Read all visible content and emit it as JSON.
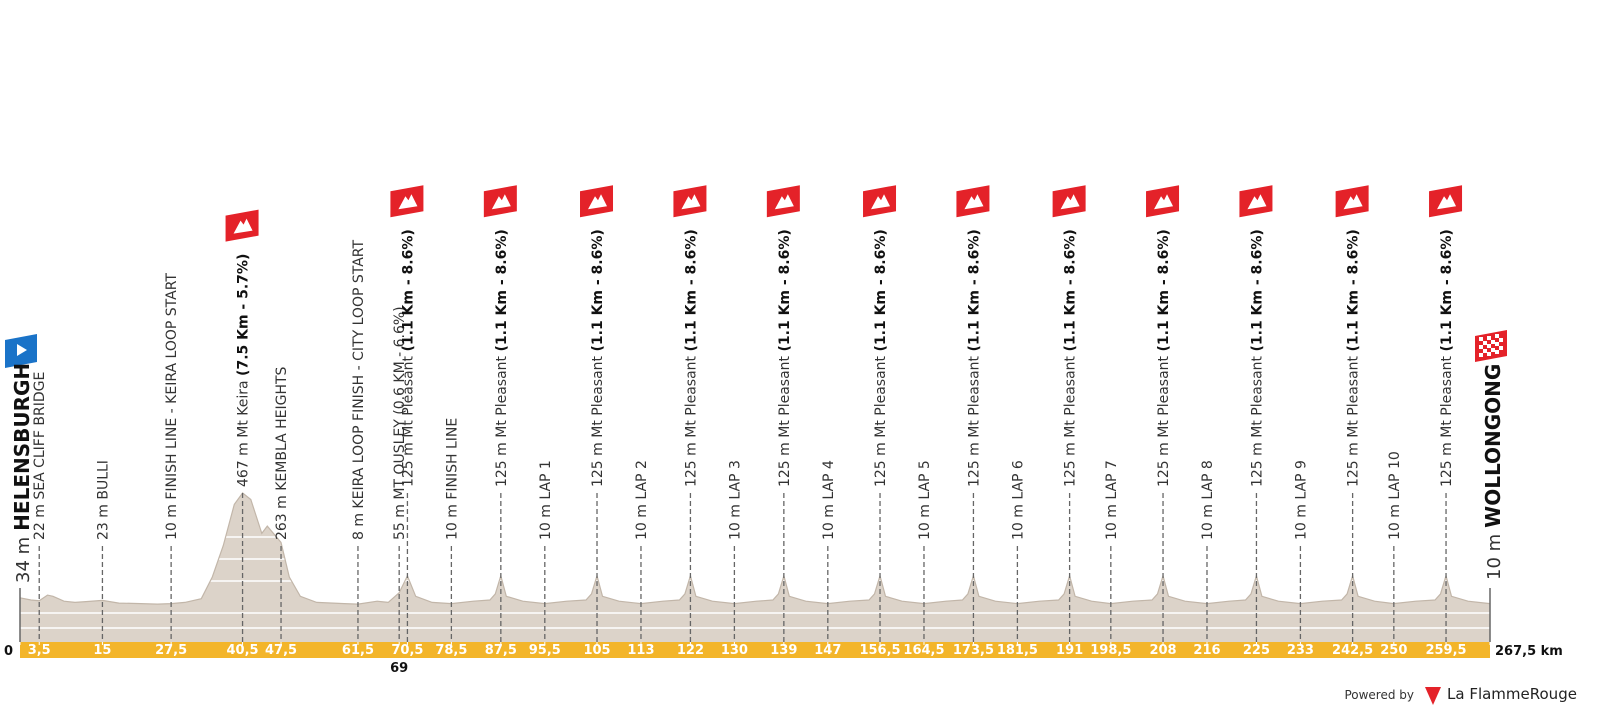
{
  "chart_data": {
    "type": "profile",
    "xlim": [
      0,
      267.5
    ],
    "ylim": [
      0,
      467
    ],
    "x": [
      0,
      2,
      3.5,
      5,
      6,
      8,
      10,
      12,
      15,
      18,
      22,
      25,
      27.5,
      30,
      33,
      35,
      37,
      39,
      40.5,
      42,
      44,
      45,
      47.5,
      49,
      51,
      54,
      57,
      59,
      61.5,
      65,
      67,
      69,
      70.5,
      72,
      75,
      78.5,
      82.5,
      85.5,
      86.5,
      87.5,
      88.5,
      91.5,
      95.5,
      99.5,
      103,
      104,
      105,
      106,
      109,
      113,
      117,
      120,
      121,
      122,
      123,
      126,
      130,
      134,
      137,
      138,
      139,
      140,
      143,
      147,
      151,
      154.5,
      155.5,
      156.5,
      157.5,
      160.5,
      164.5,
      168.5,
      171.5,
      172.5,
      173.5,
      174.5,
      177.5,
      181.5,
      185.5,
      189,
      190,
      191,
      192,
      195,
      198.5,
      202.5,
      206,
      207,
      208,
      209,
      212,
      216,
      220,
      223,
      224,
      225,
      226,
      229,
      233,
      237,
      240.5,
      241.5,
      242.5,
      243.5,
      246.5,
      250,
      254,
      257.5,
      258.5,
      259.5,
      260.5,
      263.5,
      267.5
    ],
    "values": [
      34,
      25,
      22,
      45,
      40,
      20,
      15,
      18,
      23,
      12,
      10,
      8,
      10,
      15,
      30,
      120,
      250,
      420,
      467,
      440,
      300,
      330,
      263,
      120,
      40,
      15,
      12,
      10,
      8,
      20,
      15,
      55,
      125,
      40,
      15,
      10,
      20,
      25,
      50,
      125,
      40,
      20,
      10,
      20,
      25,
      50,
      125,
      40,
      20,
      10,
      20,
      25,
      50,
      125,
      40,
      20,
      10,
      20,
      25,
      50,
      125,
      40,
      20,
      10,
      20,
      25,
      50,
      125,
      40,
      20,
      10,
      20,
      25,
      50,
      125,
      40,
      20,
      10,
      20,
      25,
      50,
      125,
      40,
      20,
      10,
      20,
      25,
      50,
      125,
      40,
      20,
      10,
      20,
      25,
      50,
      125,
      40,
      20,
      10,
      20,
      25,
      50,
      125,
      40,
      20,
      10,
      20,
      25,
      50,
      125,
      40,
      20,
      10
    ],
    "color": "#dcd3c9",
    "band_color": "#f3b52a",
    "climb_color": "#e42229",
    "start": {
      "elevation": "34 m",
      "name": "HELENSBURGH"
    },
    "finish": {
      "elevation": "10 m",
      "name": "WOLLONGONG"
    },
    "markers": [
      {
        "km": 3.5,
        "text": "22 m SEA CLIFF BRIDGE"
      },
      {
        "km": 15,
        "text": "23 m BULLI"
      },
      {
        "km": 27.5,
        "text": "10 m FINISH LINE - KEIRA LOOP START"
      },
      {
        "km": 40.5,
        "text": "467 m Mt Keira ",
        "detail": "(7.5 Km - 5.7%)"
      },
      {
        "km": 47.5,
        "text": "263 m KEMBLA HEIGHTS"
      },
      {
        "km": 61.5,
        "text": "8 m KEIRA LOOP FINISH - CITY LOOP START"
      },
      {
        "km": 69,
        "text": "55 m MT OUSLEY (0.6 KM - 6.6%)"
      },
      {
        "km": 70.5,
        "text": "125 m Mt Pleasant ",
        "detail": "(1.1 Km - 8.6%)"
      },
      {
        "km": 78.5,
        "text": "10 m FINISH LINE"
      },
      {
        "km": 87.5,
        "text": "125 m Mt Pleasant ",
        "detail": "(1.1 Km - 8.6%)"
      },
      {
        "km": 95.5,
        "text": "10 m LAP 1"
      },
      {
        "km": 105,
        "text": "125 m Mt Pleasant ",
        "detail": "(1.1 Km - 8.6%)"
      },
      {
        "km": 113,
        "text": "10 m LAP 2"
      },
      {
        "km": 122,
        "text": "125 m Mt Pleasant ",
        "detail": "(1.1 Km - 8.6%)"
      },
      {
        "km": 130,
        "text": "10 m LAP 3"
      },
      {
        "km": 139,
        "text": "125 m Mt Pleasant ",
        "detail": "(1.1 Km - 8.6%)"
      },
      {
        "km": 147,
        "text": "10 m LAP 4"
      },
      {
        "km": 156.5,
        "text": "125 m Mt Pleasant ",
        "detail": "(1.1 Km - 8.6%)"
      },
      {
        "km": 164.5,
        "text": "10 m LAP 5"
      },
      {
        "km": 173.5,
        "text": "125 m Mt Pleasant ",
        "detail": "(1.1 Km - 8.6%)"
      },
      {
        "km": 181.5,
        "text": "10 m LAP 6"
      },
      {
        "km": 191,
        "text": "125 m Mt Pleasant ",
        "detail": "(1.1 Km - 8.6%)"
      },
      {
        "km": 198.5,
        "text": "10 m LAP 7"
      },
      {
        "km": 208,
        "text": "125 m Mt Pleasant ",
        "detail": "(1.1 Km - 8.6%)"
      },
      {
        "km": 216,
        "text": "10 m LAP 8"
      },
      {
        "km": 225,
        "text": "125 m Mt Pleasant ",
        "detail": "(1.1 Km - 8.6%)"
      },
      {
        "km": 233,
        "text": "10 m LAP 9"
      },
      {
        "km": 242.5,
        "text": "125 m Mt Pleasant ",
        "detail": "(1.1 Km - 8.6%)"
      },
      {
        "km": 250,
        "text": "10 m LAP 10"
      },
      {
        "km": 259.5,
        "text": "125 m Mt Pleasant ",
        "detail": "(1.1 Km - 8.6%)"
      }
    ],
    "xticks": [
      0,
      {
        "value": 3.5,
        "label": "3,5"
      },
      15,
      {
        "value": 27.5,
        "label": "27,5"
      },
      {
        "value": 40.5,
        "label": "40,5"
      },
      {
        "value": 47.5,
        "label": "47,5"
      },
      {
        "value": 61.5,
        "label": "61,5"
      },
      69,
      {
        "value": 70.5,
        "label": "70,5"
      },
      {
        "value": 78.5,
        "label": "78,5"
      },
      {
        "value": 87.5,
        "label": "87,5"
      },
      {
        "value": 95.5,
        "label": "95,5"
      },
      105,
      113,
      122,
      130,
      139,
      147,
      {
        "value": 156.5,
        "label": "156,5"
      },
      {
        "value": 164.5,
        "label": "164,5"
      },
      {
        "value": 173.5,
        "label": "173,5"
      },
      {
        "value": 181.5,
        "label": "181,5"
      },
      191,
      {
        "value": 198.5,
        "label": "198,5"
      },
      208,
      216,
      225,
      233,
      {
        "value": 242.5,
        "label": "242,5"
      },
      250,
      {
        "value": 259.5,
        "label": "259,5"
      },
      {
        "value": 267.5,
        "label": "267,5 km"
      }
    ],
    "footer": {
      "prefix": "Powered by",
      "brand": "La FlammeRouge"
    }
  }
}
